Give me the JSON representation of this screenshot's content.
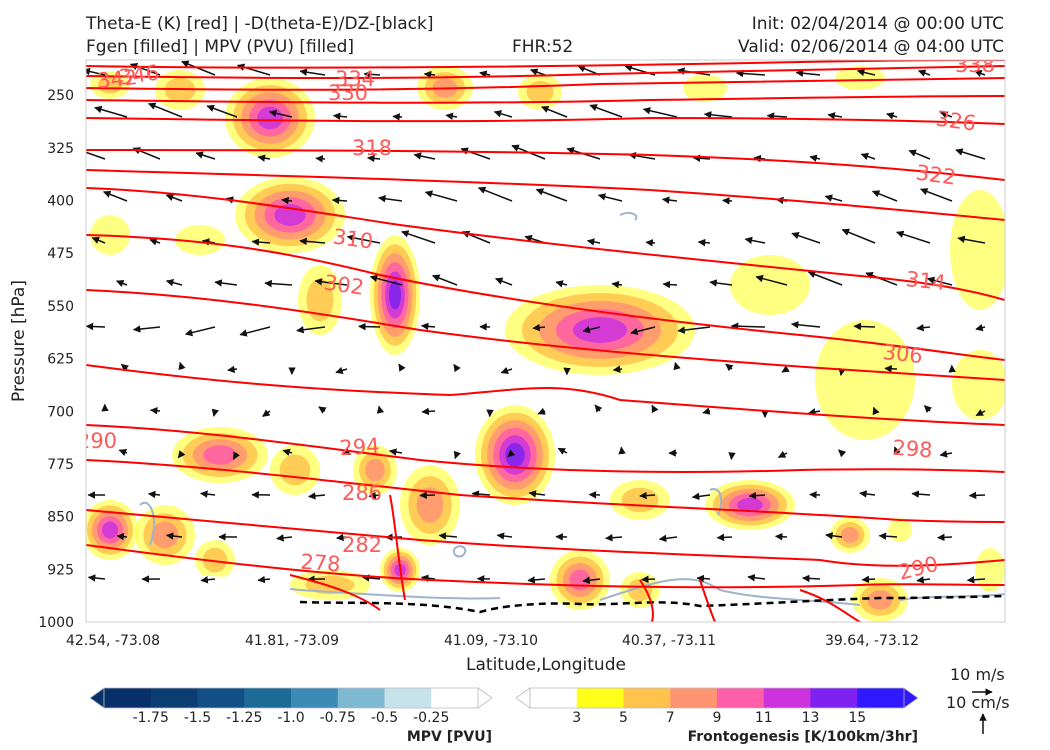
{
  "header": {
    "title_line1": "Theta-E (K) [red] | -D(theta-E)/DZ-[black]",
    "title_line2": "Fgen [filled] | MPV (PVU) [filled]",
    "fhr": "FHR:52",
    "init": "Init: 02/04/2014 @ 00:00 UTC",
    "valid": "Valid: 02/06/2014 @ 04:00 UTC"
  },
  "chart_data": {
    "type": "cross-section",
    "xlabel": "Latitude,Longitude",
    "ylabel": "Pressure [hPa]",
    "x_ticks": [
      "42.54, -73.08",
      "41.81, -73.09",
      "41.09, -73.10",
      "40.37, -73.11",
      "39.64, -73.12"
    ],
    "y_ticks": [
      250,
      325,
      400,
      475,
      550,
      625,
      700,
      775,
      850,
      925,
      1000
    ],
    "ylim": [
      1000,
      200
    ],
    "theta_e_contours": {
      "color": "#ff0000",
      "labels": [
        {
          "text": "346"
        },
        {
          "text": "342"
        },
        {
          "text": "338"
        },
        {
          "text": "334"
        },
        {
          "text": "330"
        },
        {
          "text": "326"
        },
        {
          "text": "322"
        },
        {
          "text": "318"
        },
        {
          "text": "314"
        },
        {
          "text": "310"
        },
        {
          "text": "306"
        },
        {
          "text": "302"
        },
        {
          "text": "298"
        },
        {
          "text": "294"
        },
        {
          "text": "290"
        },
        {
          "text": "290"
        },
        {
          "text": "286"
        },
        {
          "text": "282"
        },
        {
          "text": "278"
        }
      ]
    },
    "mpv_colorbar": {
      "title": "MPV [PVU]",
      "ticks": [
        "-1.75",
        "-1.5",
        "-1.25",
        "-1.0",
        "-0.75",
        "-0.5",
        "-0.25"
      ],
      "colors": [
        "#08306b",
        "#0b3d73",
        "#124f87",
        "#1c6a96",
        "#3b8bb6",
        "#7fb8d1",
        "#c6e2ea",
        "#ffffff"
      ]
    },
    "fgen_colorbar": {
      "title": "Frontogenesis [K/100km/3hr]",
      "ticks": [
        "3",
        "5",
        "7",
        "9",
        "11",
        "13",
        "15"
      ],
      "colors": [
        "#ffffff",
        "#ffff1a",
        "#ffc34d",
        "#ff9473",
        "#ff5fa8",
        "#cc33dd",
        "#7d22f0",
        "#3018ff"
      ]
    },
    "vector_key": {
      "u_label": "10 m/s",
      "w_label": "10 cm/s"
    }
  }
}
